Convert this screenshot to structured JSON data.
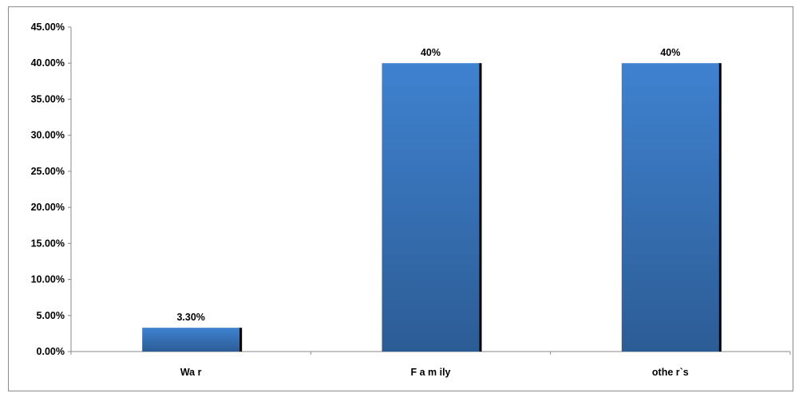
{
  "chart_data": {
    "type": "bar",
    "categories": [
      "Wa r",
      "F a m ily",
      "othe r`s"
    ],
    "values": [
      3.3,
      40,
      40
    ],
    "data_labels": [
      "3.30%",
      "40%",
      "40%"
    ],
    "y_ticks": [
      "0.00%",
      "5.00%",
      "10.00%",
      "15.00%",
      "20.00%",
      "25.00%",
      "30.00%",
      "35.00%",
      "40.00%",
      "45.00%"
    ],
    "ylim": [
      0,
      45
    ],
    "grid": false,
    "legend": "none",
    "title": "",
    "xlabel": "",
    "ylabel": ""
  },
  "colors": {
    "bar_top": "#3f82d0",
    "bar_bottom": "#2c5c95",
    "bar_shadow": "#000000",
    "axis": "#8a8a8a"
  }
}
